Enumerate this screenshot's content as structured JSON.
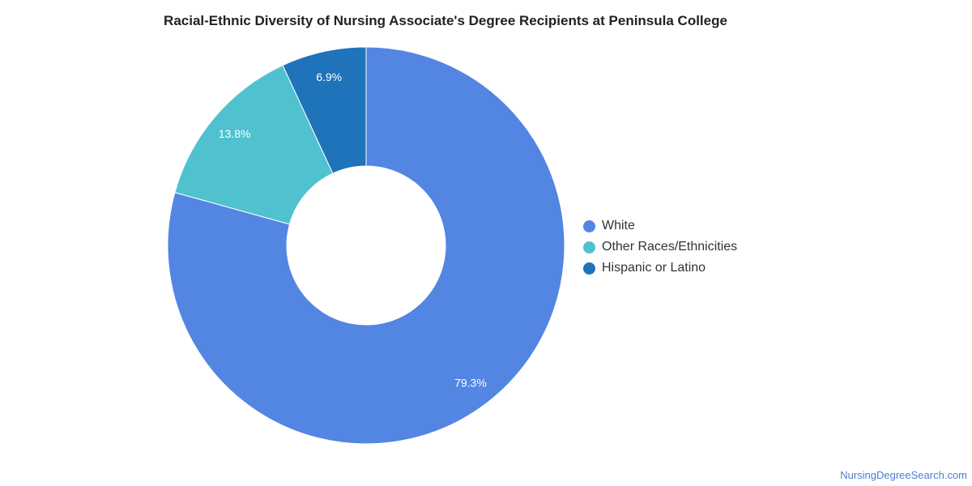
{
  "title": "Racial-Ethnic Diversity of Nursing Associate's Degree Recipients at Peninsula College",
  "watermark": "NursingDegreeSearch.com",
  "chart_data": {
    "type": "pie",
    "donut": true,
    "title": "Racial-Ethnic Diversity of Nursing Associate's Degree Recipients at Peninsula College",
    "legend_position": "right",
    "slices": [
      {
        "label": "White",
        "value": 79.3,
        "display": "79.3%",
        "color": "#5385e3"
      },
      {
        "label": "Other Races/Ethnicities",
        "value": 13.8,
        "display": "13.8%",
        "color": "#50c2cf"
      },
      {
        "label": "Hispanic or Latino",
        "value": 6.9,
        "display": "6.9%",
        "color": "#1f73ba"
      }
    ]
  }
}
